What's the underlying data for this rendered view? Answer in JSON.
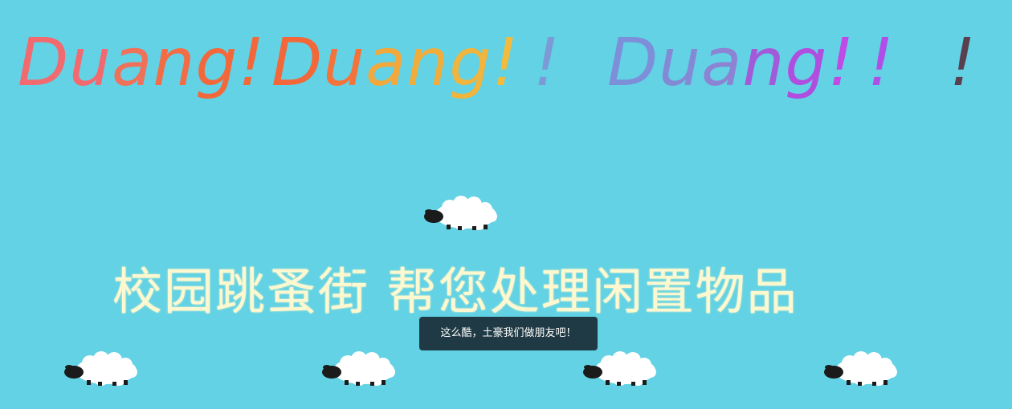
{
  "headline": {
    "words": [
      {
        "text": "Duang!",
        "letters": [
          {
            "ch": "D",
            "color": "#f26a6f"
          },
          {
            "ch": "u",
            "color": "#f26a6f"
          },
          {
            "ch": "a",
            "color": "#f0715a"
          },
          {
            "ch": "n",
            "color": "#f36c45"
          },
          {
            "ch": "g",
            "color": "#f3683a"
          },
          {
            "ch": "!",
            "color": "#f3683a"
          }
        ]
      },
      {
        "text": "Duang!",
        "letters": [
          {
            "ch": "D",
            "color": "#f36738"
          },
          {
            "ch": "u",
            "color": "#f4733a"
          },
          {
            "ch": "a",
            "color": "#f3a83c"
          },
          {
            "ch": "n",
            "color": "#f1ad3c"
          },
          {
            "ch": "g",
            "color": "#f1b43d"
          },
          {
            "ch": "!",
            "color": "#f3bb3e"
          }
        ]
      },
      {
        "text": "!",
        "letters": [
          {
            "ch": "!",
            "color": "#7b9ad6"
          }
        ]
      },
      {
        "text": "Duang!",
        "letters": [
          {
            "ch": "D",
            "color": "#7c8fd8"
          },
          {
            "ch": "u",
            "color": "#8489d5"
          },
          {
            "ch": "a",
            "color": "#8d83d3"
          },
          {
            "ch": "n",
            "color": "#a25ad8"
          },
          {
            "ch": "g",
            "color": "#b04ee0"
          },
          {
            "ch": "!",
            "color": "#c04ae5"
          }
        ]
      },
      {
        "text": "!",
        "letters": [
          {
            "ch": "!",
            "color": "#b04ee8"
          }
        ]
      },
      {
        "text": "!",
        "letters": [
          {
            "ch": "!",
            "color": "#5a3f4f"
          }
        ]
      }
    ]
  },
  "tagline": "校园跳蚤街 帮您处理闲置物品",
  "tooltip": "这么酷，土豪我们做朋友吧！",
  "colors": {
    "background": "#62d2e4",
    "tagline": "#fdf8d0",
    "tooltip_bg": "#1f3a44"
  },
  "decor": {
    "sheep_count": 5,
    "icon": "sheep-icon"
  }
}
